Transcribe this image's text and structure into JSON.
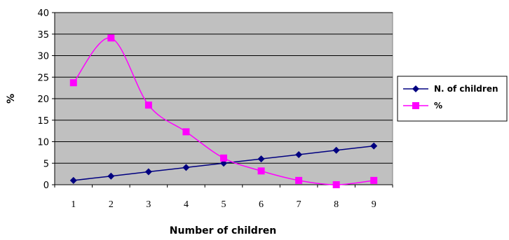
{
  "chart_data": {
    "type": "line",
    "title": "",
    "xlabel": "Number of children",
    "ylabel": "%",
    "categories": [
      "1",
      "2",
      "3",
      "4",
      "5",
      "6",
      "7",
      "8",
      "9"
    ],
    "ylim": [
      0,
      40
    ],
    "yticks": [
      0,
      5,
      10,
      15,
      20,
      25,
      30,
      35,
      40
    ],
    "grid": true,
    "legend_position": "right",
    "plot_background": "#c0c0c0",
    "series": [
      {
        "name": "N. of children",
        "color": "#000080",
        "marker": "diamond",
        "values": [
          1,
          2,
          3,
          4,
          5,
          6,
          7,
          8,
          9
        ]
      },
      {
        "name": "%",
        "color": "#ff00ff",
        "marker": "square",
        "values": [
          23.7,
          34.1,
          18.5,
          12.3,
          6.2,
          3.2,
          1.0,
          0.0,
          1.0
        ]
      }
    ]
  }
}
